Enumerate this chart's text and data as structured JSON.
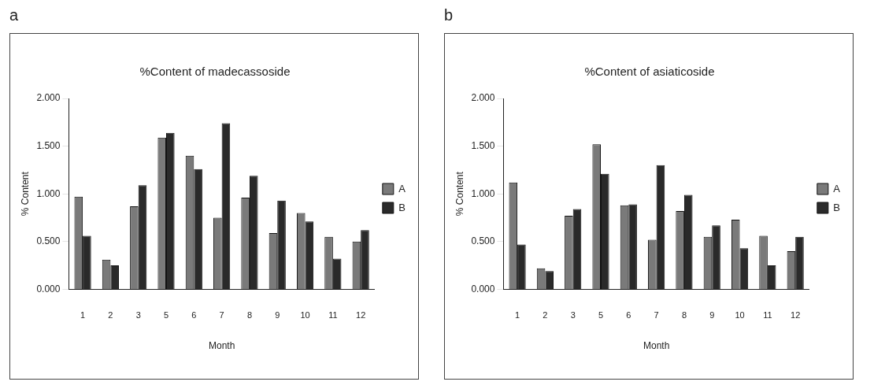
{
  "chart_data": [
    {
      "type": "bar",
      "title": "%Content of madecassoside",
      "xlabel": "Month",
      "ylabel": "% Content",
      "annotations": [
        "a"
      ],
      "categories": [
        "1",
        "2",
        "3",
        "5",
        "6",
        "7",
        "8",
        "9",
        "10",
        "11",
        "12"
      ],
      "series": [
        {
          "name": "A",
          "color": "#7a7a7a",
          "values": [
            0.97,
            0.31,
            0.87,
            1.59,
            1.4,
            0.75,
            0.96,
            0.59,
            0.8,
            0.55,
            0.5
          ]
        },
        {
          "name": "B",
          "color": "#2a2a2a",
          "values": [
            0.56,
            0.25,
            1.09,
            1.64,
            1.26,
            1.74,
            1.19,
            0.93,
            0.71,
            0.32,
            0.62
          ]
        }
      ],
      "ylim": [
        0,
        2
      ],
      "yticks": [
        {
          "value": 0,
          "label": "0.000"
        },
        {
          "value": 0.5,
          "label": "0.500"
        },
        {
          "value": 1,
          "label": "1.000"
        },
        {
          "value": 1.5,
          "label": "1.500"
        },
        {
          "value": 2,
          "label": "2.000"
        }
      ],
      "legend": "right"
    },
    {
      "type": "bar",
      "title": "%Content of asiaticoside",
      "xlabel": "Month",
      "ylabel": "% Content",
      "annotations": [
        "b"
      ],
      "categories": [
        "1",
        "2",
        "3",
        "5",
        "6",
        "7",
        "8",
        "9",
        "10",
        "11",
        "12"
      ],
      "series": [
        {
          "name": "A",
          "color": "#7a7a7a",
          "values": [
            1.12,
            0.22,
            0.77,
            1.52,
            0.88,
            0.52,
            0.82,
            0.55,
            0.73,
            0.56,
            0.4
          ]
        },
        {
          "name": "B",
          "color": "#2a2a2a",
          "values": [
            0.47,
            0.19,
            0.84,
            1.21,
            0.89,
            1.3,
            0.99,
            0.67,
            0.43,
            0.25,
            0.55
          ]
        }
      ],
      "ylim": [
        0,
        2
      ],
      "yticks": [
        {
          "value": 0,
          "label": "0.000"
        },
        {
          "value": 0.5,
          "label": "0.500"
        },
        {
          "value": 1,
          "label": "1.000"
        },
        {
          "value": 1.5,
          "label": "1.500"
        },
        {
          "value": 2,
          "label": "2.000"
        }
      ],
      "legend": "right"
    }
  ]
}
